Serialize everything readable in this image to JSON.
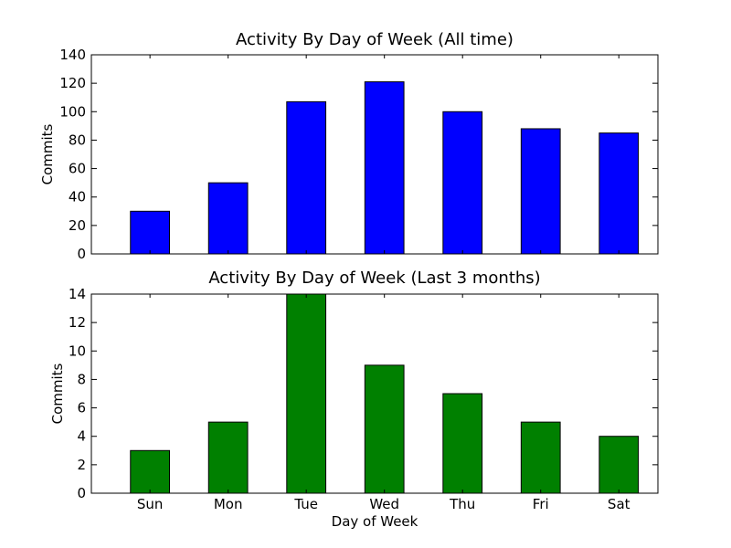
{
  "chart_data": [
    {
      "type": "bar",
      "title": "Activity By Day of Week (All time)",
      "xlabel": "",
      "ylabel": "Commits",
      "categories": [
        "Sun",
        "Mon",
        "Tue",
        "Wed",
        "Thu",
        "Fri",
        "Sat"
      ],
      "show_category_labels": false,
      "values": [
        30,
        50,
        107,
        121,
        100,
        88,
        85
      ],
      "ylim": [
        0,
        140
      ],
      "yticks": [
        0,
        20,
        40,
        60,
        80,
        100,
        120,
        140
      ],
      "color": "#0000ff",
      "grid": false
    },
    {
      "type": "bar",
      "title": "Activity By Day of Week (Last 3 months)",
      "xlabel": "Day of Week",
      "ylabel": "Commits",
      "categories": [
        "Sun",
        "Mon",
        "Tue",
        "Wed",
        "Thu",
        "Fri",
        "Sat"
      ],
      "show_category_labels": true,
      "values": [
        3,
        5,
        14,
        9,
        7,
        5,
        4
      ],
      "ylim": [
        0,
        14
      ],
      "yticks": [
        0,
        2,
        4,
        6,
        8,
        10,
        12,
        14
      ],
      "color": "#008000",
      "grid": false
    }
  ]
}
